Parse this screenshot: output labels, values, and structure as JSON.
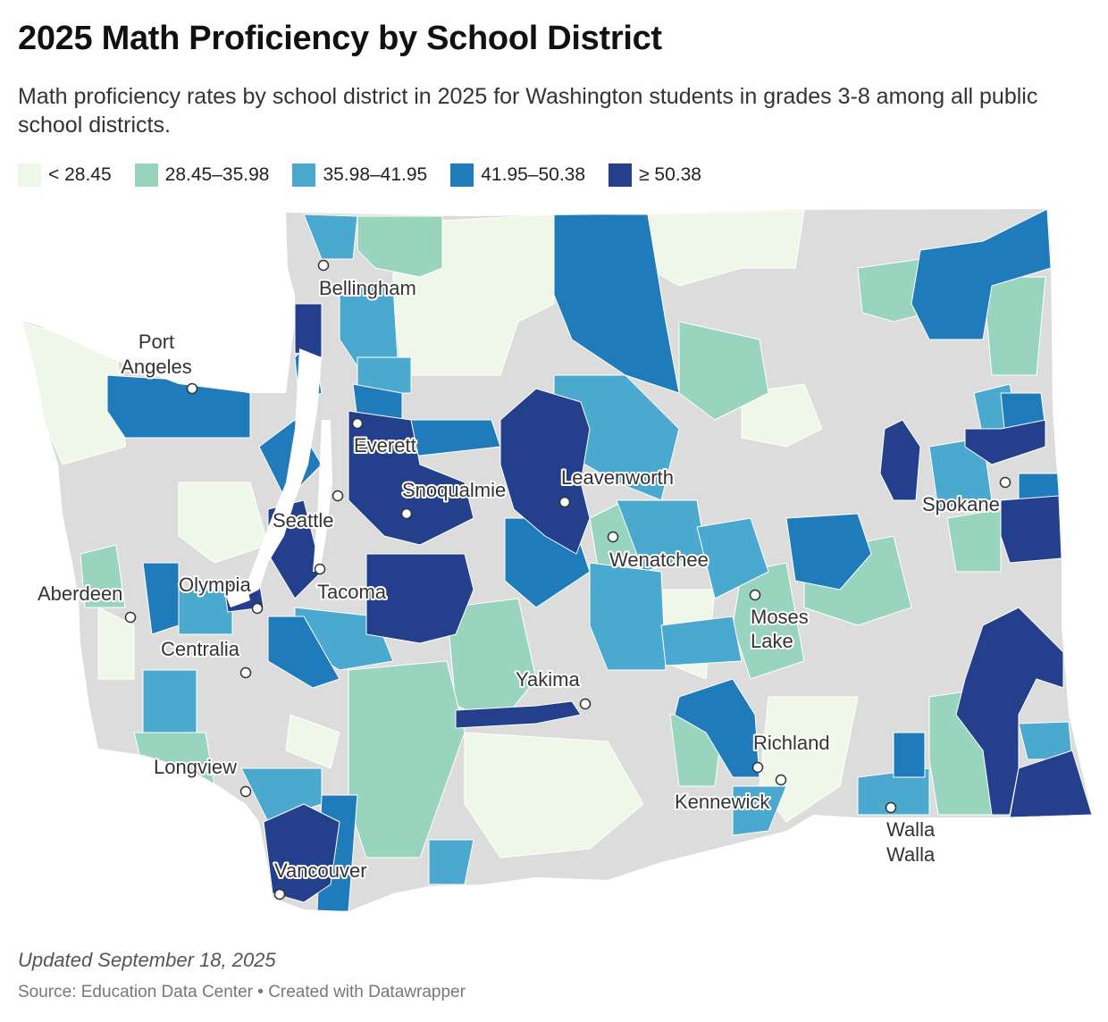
{
  "title": "2025 Math Proficiency by School District",
  "subtitle": "Math proficiency rates by school district in 2025 for Washington students in grades 3-8 among all public school districts.",
  "legend": [
    {
      "label": "< 28.45",
      "color": "#eff8e8"
    },
    {
      "label": "28.45–35.98",
      "color": "#98d4be"
    },
    {
      "label": "35.98–41.95",
      "color": "#4ba8cf"
    },
    {
      "label": "41.95–50.38",
      "color": "#1f7bba"
    },
    {
      "label": "≥ 50.38",
      "color": "#243f8c"
    }
  ],
  "no_data_color": "#dcdcdc",
  "cities": [
    {
      "name": "Bellingham",
      "lines": [
        "Bellingham"
      ]
    },
    {
      "name": "Port Angeles",
      "lines": [
        "Port",
        "Angeles"
      ]
    },
    {
      "name": "Everett",
      "lines": [
        "Everett"
      ]
    },
    {
      "name": "Snoqualmie",
      "lines": [
        "Snoqualmie"
      ]
    },
    {
      "name": "Leavenworth",
      "lines": [
        "Leavenworth"
      ]
    },
    {
      "name": "Seattle",
      "lines": [
        "Seattle"
      ]
    },
    {
      "name": "Spokane",
      "lines": [
        "Spokane"
      ]
    },
    {
      "name": "Wenatchee",
      "lines": [
        "Wenatchee"
      ]
    },
    {
      "name": "Aberdeen",
      "lines": [
        "Aberdeen"
      ]
    },
    {
      "name": "Olympia",
      "lines": [
        "Olympia"
      ]
    },
    {
      "name": "Tacoma",
      "lines": [
        "Tacoma"
      ]
    },
    {
      "name": "Moses Lake",
      "lines": [
        "Moses",
        "Lake"
      ]
    },
    {
      "name": "Centralia",
      "lines": [
        "Centralia"
      ]
    },
    {
      "name": "Yakima",
      "lines": [
        "Yakima"
      ]
    },
    {
      "name": "Richland",
      "lines": [
        "Richland"
      ]
    },
    {
      "name": "Longview",
      "lines": [
        "Longview"
      ]
    },
    {
      "name": "Kennewick",
      "lines": [
        "Kennewick"
      ]
    },
    {
      "name": "Walla Walla",
      "lines": [
        "Walla",
        "Walla"
      ]
    },
    {
      "name": "Vancouver",
      "lines": [
        "Vancouver"
      ]
    }
  ],
  "footer": {
    "updated": "Updated September 18, 2025",
    "source": "Source: Education Data Center • Created with Datawrapper"
  }
}
